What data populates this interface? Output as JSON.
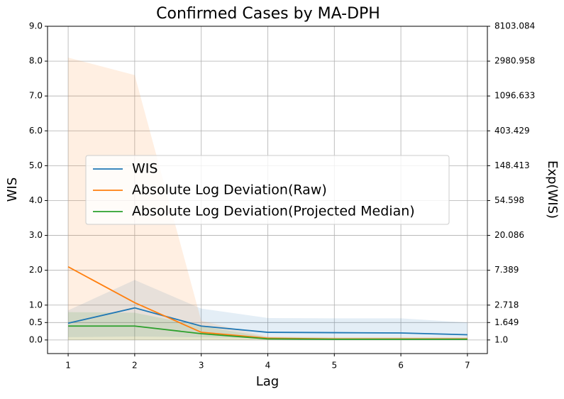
{
  "chart_data": {
    "type": "line",
    "title": "Confirmed Cases by MA-DPH",
    "xlabel": "Lag",
    "ylabel": "WIS",
    "y2label": "Exp(WIS)",
    "x": [
      1,
      2,
      3,
      4,
      5,
      6,
      7
    ],
    "xlim": [
      0.69,
      7.3
    ],
    "xticks": [
      1,
      2,
      3,
      4,
      5,
      6,
      7
    ],
    "ylim": [
      -0.39,
      9.0
    ],
    "yticks": [
      {
        "value": 0,
        "label": "0.0"
      },
      {
        "value": 0.5,
        "label": "0.5"
      },
      {
        "value": 1,
        "label": "1.0"
      },
      {
        "value": 2,
        "label": "2.0"
      },
      {
        "value": 3,
        "label": "3.0"
      },
      {
        "value": 4,
        "label": "4.0"
      },
      {
        "value": 5,
        "label": "5.0"
      },
      {
        "value": 6,
        "label": "6.0"
      },
      {
        "value": 7,
        "label": "7.0"
      },
      {
        "value": 8,
        "label": "8.0"
      },
      {
        "value": 9,
        "label": "9.0"
      }
    ],
    "y2scale": "log",
    "y2lim": [
      0.677,
      8103.084
    ],
    "y2ticks": [
      {
        "value": 1,
        "label": "1.0"
      },
      1.649,
      2.718,
      7.389,
      20.086,
      54.598,
      148.413,
      403.429,
      1096.633,
      2980.958,
      8103.084
    ],
    "grid": true,
    "legend": "center",
    "series": [
      {
        "name": "WIS",
        "color": "#1f77b4",
        "values": [
          0.48,
          0.92,
          0.4,
          0.22,
          0.21,
          0.2,
          0.15
        ],
        "lower": [
          0.08,
          0.1,
          0.08,
          0.05,
          0.05,
          0.05,
          0.04
        ],
        "upper": [
          0.85,
          1.72,
          0.9,
          0.63,
          0.62,
          0.62,
          0.5
        ]
      },
      {
        "name": "Absolute Log Deviation(Raw)",
        "color": "#ff7f0e",
        "values": [
          2.1,
          1.07,
          0.22,
          0.05,
          0.03,
          0.03,
          0.03
        ],
        "lower": [
          0,
          0,
          0,
          0,
          0,
          0,
          0
        ],
        "upper": [
          8.1,
          7.6,
          0.55,
          0.1,
          0.08,
          0.08,
          0.08
        ]
      },
      {
        "name": "Absolute Log Deviation(Projected Median)",
        "color": "#2ca02c",
        "values": [
          0.4,
          0.4,
          0.18,
          0.03,
          0.02,
          0.02,
          0.02
        ],
        "lower": [
          0,
          0,
          0,
          0,
          0,
          0,
          0
        ],
        "upper": [
          0.8,
          0.78,
          0.4,
          0.08,
          0.06,
          0.06,
          0.06
        ]
      }
    ]
  }
}
